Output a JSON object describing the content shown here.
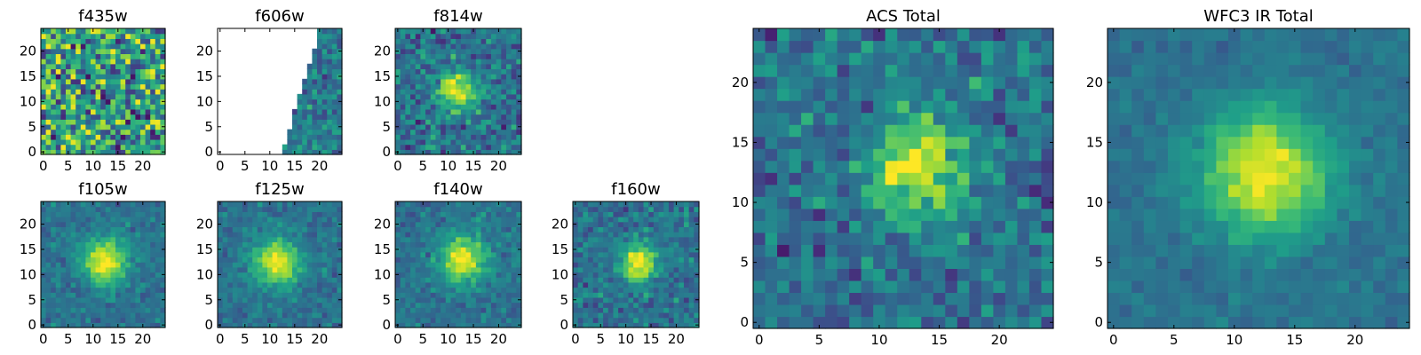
{
  "colormap": "viridis",
  "chart_data": [
    {
      "type": "heatmap",
      "title": "f435w",
      "grid": false,
      "x_ticks": [
        0,
        5,
        10,
        15,
        20
      ],
      "y_ticks": [
        0,
        5,
        10,
        15,
        20
      ],
      "xlim": [
        0,
        24
      ],
      "ylim": [
        0,
        24
      ],
      "pattern": "noise"
    },
    {
      "type": "heatmap",
      "title": "f606w",
      "grid": false,
      "x_ticks": [
        0,
        5,
        10,
        15,
        20
      ],
      "y_ticks": [
        0,
        5,
        10,
        15,
        20
      ],
      "xlim": [
        0,
        24
      ],
      "ylim": [
        0,
        24
      ],
      "pattern": "edge",
      "note_values": "pixels left of a diagonal edge are blank (NaN)"
    },
    {
      "type": "heatmap",
      "title": "f814w",
      "grid": false,
      "x_ticks": [
        0,
        5,
        10,
        15,
        20
      ],
      "y_ticks": [
        0,
        5,
        10,
        15,
        20
      ],
      "xlim": [
        0,
        24
      ],
      "ylim": [
        0,
        24
      ],
      "pattern": "source",
      "source_center": [
        12,
        12
      ],
      "source_width": 2.6,
      "noise": 0.55
    },
    {
      "type": "heatmap",
      "title": "f105w",
      "grid": false,
      "x_ticks": [
        0,
        5,
        10,
        15,
        20
      ],
      "y_ticks": [
        0,
        5,
        10,
        15,
        20
      ],
      "xlim": [
        0,
        24
      ],
      "ylim": [
        0,
        24
      ],
      "pattern": "source",
      "source_center": [
        12.5,
        12.5
      ],
      "source_width": 3.2,
      "noise": 0.28
    },
    {
      "type": "heatmap",
      "title": "f125w",
      "grid": false,
      "x_ticks": [
        0,
        5,
        10,
        15,
        20
      ],
      "y_ticks": [
        0,
        5,
        10,
        15,
        20
      ],
      "xlim": [
        0,
        24
      ],
      "ylim": [
        0,
        24
      ],
      "pattern": "source",
      "source_center": [
        11.5,
        12.5
      ],
      "source_width": 3.2,
      "noise": 0.3
    },
    {
      "type": "heatmap",
      "title": "f140w",
      "grid": false,
      "x_ticks": [
        0,
        5,
        10,
        15,
        20
      ],
      "y_ticks": [
        0,
        5,
        10,
        15,
        20
      ],
      "xlim": [
        0,
        24
      ],
      "ylim": [
        0,
        24
      ],
      "pattern": "source",
      "source_center": [
        13,
        13
      ],
      "source_width": 3.2,
      "noise": 0.3
    },
    {
      "type": "heatmap",
      "title": "f160w",
      "grid": false,
      "x_ticks": [
        0,
        5,
        10,
        15,
        20
      ],
      "y_ticks": [
        0,
        5,
        10,
        15,
        20
      ],
      "xlim": [
        0,
        24
      ],
      "ylim": [
        0,
        24
      ],
      "pattern": "source",
      "source_center": [
        12.5,
        12.5
      ],
      "source_width": 2.6,
      "noise": 0.4
    },
    {
      "type": "heatmap",
      "title": "ACS Total",
      "grid": false,
      "x_ticks": [
        0,
        5,
        10,
        15,
        20
      ],
      "y_ticks": [
        0,
        5,
        10,
        15,
        20
      ],
      "xlim": [
        0,
        24
      ],
      "ylim": [
        0,
        24
      ],
      "pattern": "source",
      "source_center": [
        13,
        13
      ],
      "source_width": 2.8,
      "noise": 0.5
    },
    {
      "type": "heatmap",
      "title": "WFC3 IR Total",
      "grid": false,
      "x_ticks": [
        0,
        5,
        10,
        15,
        20
      ],
      "y_ticks": [
        0,
        5,
        10,
        15,
        20
      ],
      "xlim": [
        0,
        24
      ],
      "ylim": [
        0,
        24
      ],
      "pattern": "source",
      "source_center": [
        12.5,
        12.5
      ],
      "source_width": 3.6,
      "noise": 0.18
    }
  ]
}
